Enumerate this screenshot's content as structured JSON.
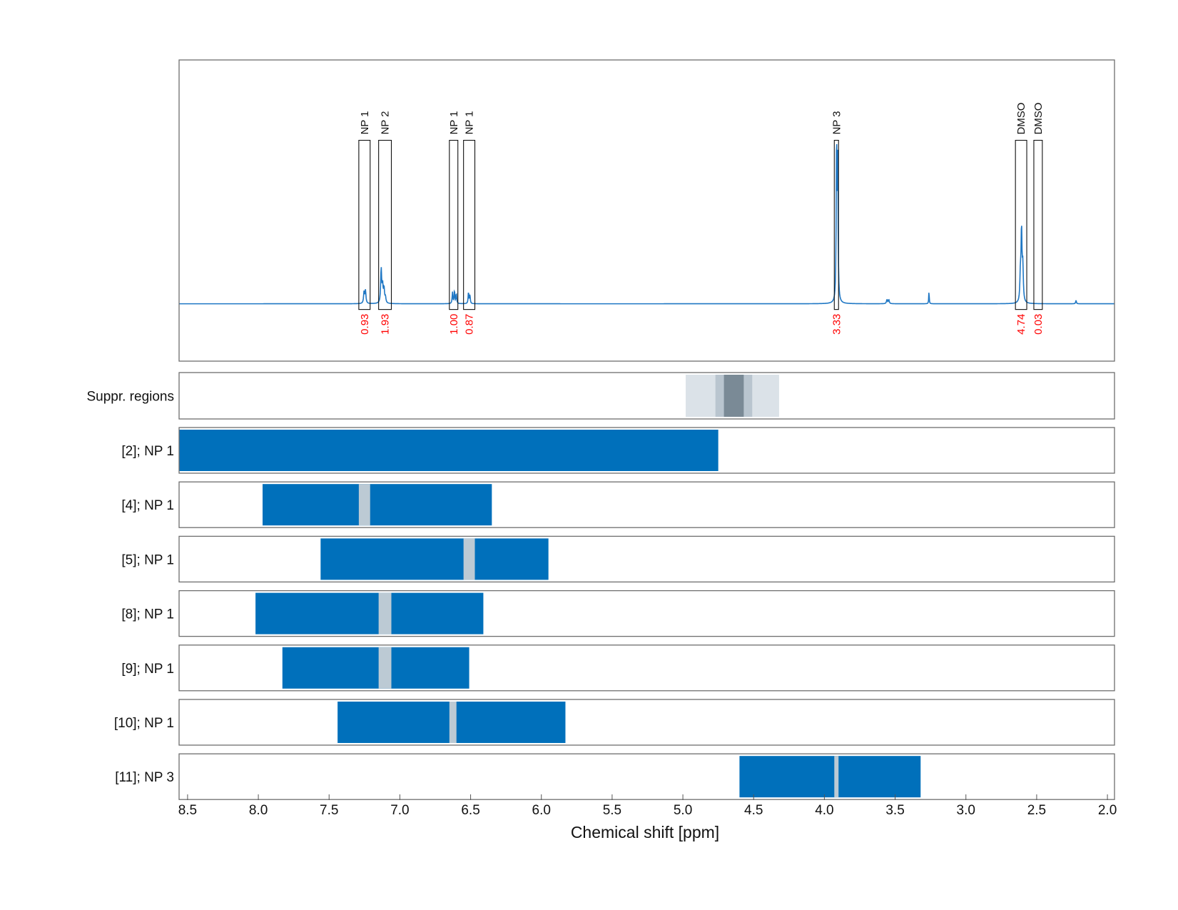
{
  "chart_data": {
    "type": "nmr-spectrum",
    "xlabel": "Chemical shift [ppm]",
    "xlim": [
      8.56,
      1.95
    ],
    "x_ticks": [
      8.5,
      8.0,
      7.5,
      7.0,
      6.5,
      6.0,
      5.5,
      5.0,
      4.5,
      4.0,
      3.5,
      3.0,
      2.5,
      2.0
    ],
    "x_tick_labels": [
      "8.5",
      "8.0",
      "7.5",
      "7.0",
      "6.5",
      "6.0",
      "5.5",
      "5.0",
      "4.5",
      "4.0",
      "3.5",
      "3.0",
      "2.5",
      "2.0"
    ],
    "grid": true,
    "colors": {
      "spectrum": "#1f77c4",
      "bar": "#0070bb",
      "bar_gap": "#bccad4",
      "integral_text": "#ff0000",
      "suppr_light": "#dbe2e8",
      "suppr_mid": "#b9c5cf",
      "suppr_dark": "#7a8a96"
    },
    "spectrum": {
      "baseline": 0,
      "ylim": [
        -0.2,
        0.85
      ],
      "peaks": [
        {
          "center": 7.243,
          "height": 0.045,
          "width": 0.004
        },
        {
          "center": 7.253,
          "height": 0.04,
          "width": 0.004
        },
        {
          "center": 7.132,
          "height": 0.12,
          "width": 0.004
        },
        {
          "center": 7.122,
          "height": 0.06,
          "width": 0.004
        },
        {
          "center": 7.112,
          "height": 0.05,
          "width": 0.004
        },
        {
          "center": 7.102,
          "height": 0.02,
          "width": 0.004
        },
        {
          "center": 6.628,
          "height": 0.04,
          "width": 0.003
        },
        {
          "center": 6.614,
          "height": 0.045,
          "width": 0.003
        },
        {
          "center": 6.601,
          "height": 0.035,
          "width": 0.003
        },
        {
          "center": 6.515,
          "height": 0.04,
          "width": 0.003
        },
        {
          "center": 6.505,
          "height": 0.03,
          "width": 0.003
        },
        {
          "center": 3.914,
          "height": 0.56,
          "width": 0.003
        },
        {
          "center": 3.906,
          "height": 0.53,
          "width": 0.003
        },
        {
          "center": 3.558,
          "height": 0.014,
          "width": 0.004
        },
        {
          "center": 3.545,
          "height": 0.014,
          "width": 0.004
        },
        {
          "center": 3.261,
          "height": 0.045,
          "width": 0.002
        },
        {
          "center": 2.607,
          "height": 0.25,
          "width": 0.004
        },
        {
          "center": 2.598,
          "height": 0.12,
          "width": 0.004
        },
        {
          "center": 2.615,
          "height": 0.09,
          "width": 0.004
        },
        {
          "center": 2.222,
          "height": 0.012,
          "width": 0.003
        }
      ]
    },
    "integration_regions": [
      {
        "label": "NP 1",
        "from": 7.29,
        "to": 7.21,
        "integral": "0.93"
      },
      {
        "label": "NP 2",
        "from": 7.15,
        "to": 7.06,
        "integral": "1.93"
      },
      {
        "label": "NP 1",
        "from": 6.65,
        "to": 6.59,
        "integral": "1.00"
      },
      {
        "label": "NP 1",
        "from": 6.55,
        "to": 6.47,
        "integral": "0.87"
      },
      {
        "label": "NP 3",
        "from": 3.93,
        "to": 3.9,
        "integral": "3.33"
      },
      {
        "label": "DMSO",
        "from": 2.65,
        "to": 2.57,
        "integral": "4.74"
      },
      {
        "label": "DMSO",
        "from": 2.52,
        "to": 2.46,
        "integral": "0.03"
      }
    ],
    "suppression": {
      "label": "Suppr. regions",
      "regions": [
        {
          "from": 4.98,
          "to": 4.32,
          "level": "light"
        },
        {
          "from": 4.77,
          "to": 4.51,
          "level": "mid"
        },
        {
          "from": 4.71,
          "to": 4.57,
          "level": "dark"
        }
      ]
    },
    "rows": [
      {
        "label": "[2]; NP 1",
        "from": 8.56,
        "to": 4.75,
        "gaps": []
      },
      {
        "label": "[4]; NP 1",
        "from": 7.97,
        "to": 6.35,
        "gaps": [
          {
            "from": 7.29,
            "to": 7.21
          }
        ]
      },
      {
        "label": "[5]; NP 1",
        "from": 7.56,
        "to": 5.95,
        "gaps": [
          {
            "from": 6.55,
            "to": 6.47
          }
        ]
      },
      {
        "label": "[8]; NP 1",
        "from": 8.02,
        "to": 6.41,
        "gaps": [
          {
            "from": 7.15,
            "to": 7.06
          }
        ]
      },
      {
        "label": "[9]; NP 1",
        "from": 7.83,
        "to": 6.51,
        "gaps": [
          {
            "from": 7.15,
            "to": 7.06
          }
        ]
      },
      {
        "label": "[10]; NP 1",
        "from": 7.44,
        "to": 5.83,
        "gaps": [
          {
            "from": 6.65,
            "to": 6.6
          }
        ]
      },
      {
        "label": "[11]; NP 3",
        "from": 4.6,
        "to": 3.32,
        "gaps": [
          {
            "from": 3.93,
            "to": 3.9
          }
        ]
      }
    ]
  }
}
